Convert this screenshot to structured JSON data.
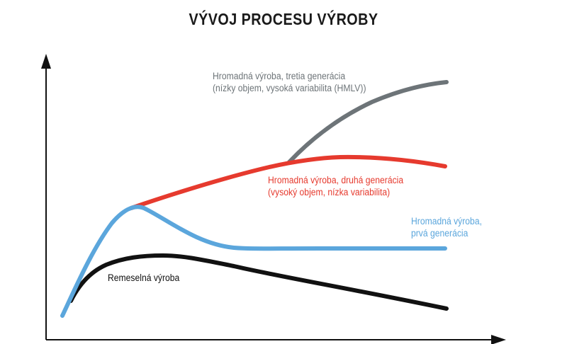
{
  "title": "VÝVOJ PROCESU VÝROBY",
  "colors": {
    "craft": "#111111",
    "gen1": "#5ba6dc",
    "gen2": "#e63a2e",
    "gen3": "#6d7478",
    "axis": "#111111"
  },
  "labels": {
    "craft": "Remeselná výroba",
    "gen1": [
      "Hromadná výroba,",
      "prvá generácia"
    ],
    "gen2": [
      "Hromadná výroba, druhá generácia",
      "(vysoký objem, nízka variabilita)"
    ],
    "gen3": [
      "Hromadná výroba, tretia generácia",
      "(nízky objem, vysoká variabilita (HMLV))"
    ]
  }
}
